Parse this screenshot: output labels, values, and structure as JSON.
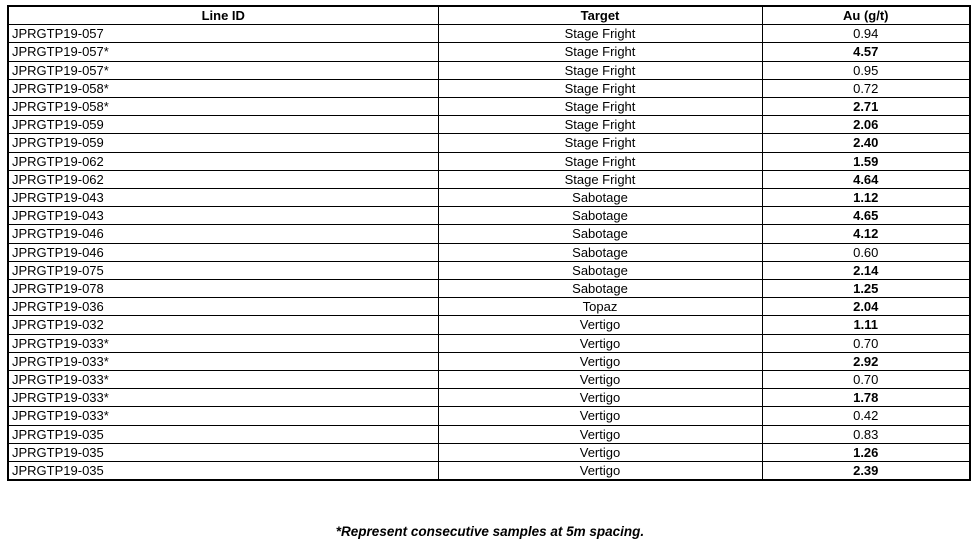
{
  "table": {
    "columns": [
      "Line ID",
      "Target",
      "Au (g/t)"
    ],
    "rows": [
      {
        "line_id": "JPRGTP19-057",
        "target": "Stage Fright",
        "au": "0.94",
        "bold": false
      },
      {
        "line_id": "JPRGTP19-057*",
        "target": "Stage Fright",
        "au": "4.57",
        "bold": true
      },
      {
        "line_id": "JPRGTP19-057*",
        "target": "Stage Fright",
        "au": "0.95",
        "bold": false
      },
      {
        "line_id": "JPRGTP19-058*",
        "target": "Stage Fright",
        "au": "0.72",
        "bold": false
      },
      {
        "line_id": "JPRGTP19-058*",
        "target": "Stage Fright",
        "au": "2.71",
        "bold": true
      },
      {
        "line_id": "JPRGTP19-059",
        "target": "Stage Fright",
        "au": "2.06",
        "bold": true
      },
      {
        "line_id": "JPRGTP19-059",
        "target": "Stage Fright",
        "au": "2.40",
        "bold": true
      },
      {
        "line_id": "JPRGTP19-062",
        "target": "Stage Fright",
        "au": "1.59",
        "bold": true
      },
      {
        "line_id": "JPRGTP19-062",
        "target": "Stage Fright",
        "au": "4.64",
        "bold": true
      },
      {
        "line_id": "JPRGTP19-043",
        "target": "Sabotage",
        "au": "1.12",
        "bold": true
      },
      {
        "line_id": "JPRGTP19-043",
        "target": "Sabotage",
        "au": "4.65",
        "bold": true
      },
      {
        "line_id": "JPRGTP19-046",
        "target": "Sabotage",
        "au": "4.12",
        "bold": true
      },
      {
        "line_id": "JPRGTP19-046",
        "target": "Sabotage",
        "au": "0.60",
        "bold": false
      },
      {
        "line_id": "JPRGTP19-075",
        "target": "Sabotage",
        "au": "2.14",
        "bold": true
      },
      {
        "line_id": "JPRGTP19-078",
        "target": "Sabotage",
        "au": "1.25",
        "bold": true
      },
      {
        "line_id": "JPRGTP19-036",
        "target": "Topaz",
        "au": "2.04",
        "bold": true
      },
      {
        "line_id": "JPRGTP19-032",
        "target": "Vertigo",
        "au": "1.11",
        "bold": true
      },
      {
        "line_id": "JPRGTP19-033*",
        "target": "Vertigo",
        "au": "0.70",
        "bold": false
      },
      {
        "line_id": "JPRGTP19-033*",
        "target": "Vertigo",
        "au": "2.92",
        "bold": true
      },
      {
        "line_id": "JPRGTP19-033*",
        "target": "Vertigo",
        "au": "0.70",
        "bold": false
      },
      {
        "line_id": "JPRGTP19-033*",
        "target": "Vertigo",
        "au": "1.78",
        "bold": true
      },
      {
        "line_id": "JPRGTP19-033*",
        "target": "Vertigo",
        "au": "0.42",
        "bold": false
      },
      {
        "line_id": "JPRGTP19-035",
        "target": "Vertigo",
        "au": "0.83",
        "bold": false
      },
      {
        "line_id": "JPRGTP19-035",
        "target": "Vertigo",
        "au": "1.26",
        "bold": true
      },
      {
        "line_id": "JPRGTP19-035",
        "target": "Vertigo",
        "au": "2.39",
        "bold": true
      }
    ]
  },
  "footnote": "*Represent consecutive samples at 5m spacing.",
  "colors": {
    "border": "#000000",
    "text": "#000000",
    "background": "#ffffff"
  }
}
